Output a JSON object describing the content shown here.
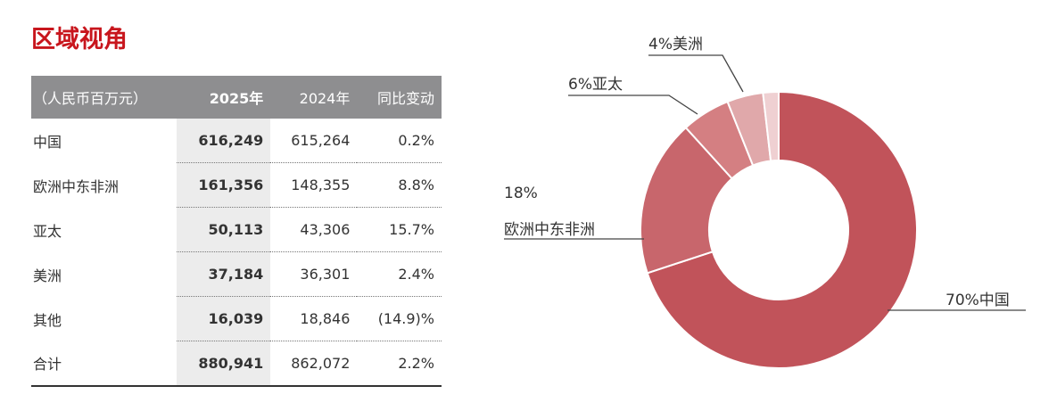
{
  "title": "区域视角",
  "table": {
    "headers": [
      "（人民币百万元）",
      "2025年",
      "2024年",
      "同比变动"
    ],
    "rows": [
      [
        "中国",
        "616,249",
        "615,264",
        "0.2%"
      ],
      [
        "欧洲中东非洲",
        "161,356",
        "148,355",
        "8.8%"
      ],
      [
        "亚太",
        "50,113",
        "43,306",
        "15.7%"
      ],
      [
        "美洲",
        "37,184",
        "36,301",
        "2.4%"
      ],
      [
        "其他",
        "16,039",
        "18,846",
        "(14.9)%"
      ],
      [
        "合计",
        "880,941",
        "862,072",
        "2.2%"
      ]
    ]
  },
  "chart_data": {
    "type": "pie",
    "donut": true,
    "slices": [
      {
        "name": "中国",
        "value": 616249,
        "label": "70%中国",
        "color": "#c1535a"
      },
      {
        "name": "欧洲中东非洲",
        "value": 161356,
        "label_pct": "18%",
        "label_name": "欧洲中东非洲",
        "color": "#c8666c"
      },
      {
        "name": "亚太",
        "value": 50113,
        "label": "6%亚太",
        "color": "#d47f82"
      },
      {
        "name": "美洲",
        "value": 37184,
        "label": "4%美洲",
        "color": "#e0a8aa"
      },
      {
        "name": "其他",
        "value": 16039,
        "color": "#efd0d2"
      }
    ]
  }
}
